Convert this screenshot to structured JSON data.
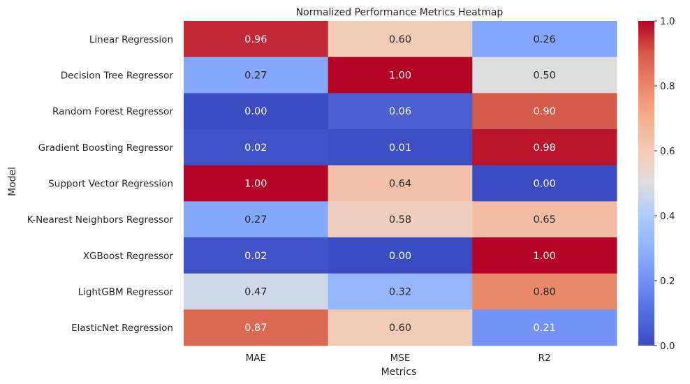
{
  "chart_data": {
    "type": "heatmap",
    "title": "Normalized Performance Metrics Heatmap",
    "xlabel": "Metrics",
    "ylabel": "Model",
    "columns": [
      "MAE",
      "MSE",
      "R2"
    ],
    "rows": [
      "Linear Regression",
      "Decision Tree Regressor",
      "Random Forest Regressor",
      "Gradient Boosting Regressor",
      "Support Vector Regression",
      "K-Nearest Neighbors Regressor",
      "XGBoost Regressor",
      "LightGBM Regressor",
      "ElasticNet Regression"
    ],
    "values": [
      [
        0.96,
        0.6,
        0.26
      ],
      [
        0.27,
        1.0,
        0.5
      ],
      [
        0.0,
        0.06,
        0.9
      ],
      [
        0.02,
        0.01,
        0.98
      ],
      [
        1.0,
        0.64,
        0.0
      ],
      [
        0.27,
        0.58,
        0.65
      ],
      [
        0.02,
        0.0,
        1.0
      ],
      [
        0.47,
        0.32,
        0.8
      ],
      [
        0.87,
        0.6,
        0.21
      ]
    ],
    "colormap": "coolwarm",
    "vmin": 0.0,
    "vmax": 1.0,
    "colorbar_ticks": [
      "0.0",
      "0.2",
      "0.4",
      "0.6",
      "0.8",
      "1.0"
    ]
  }
}
